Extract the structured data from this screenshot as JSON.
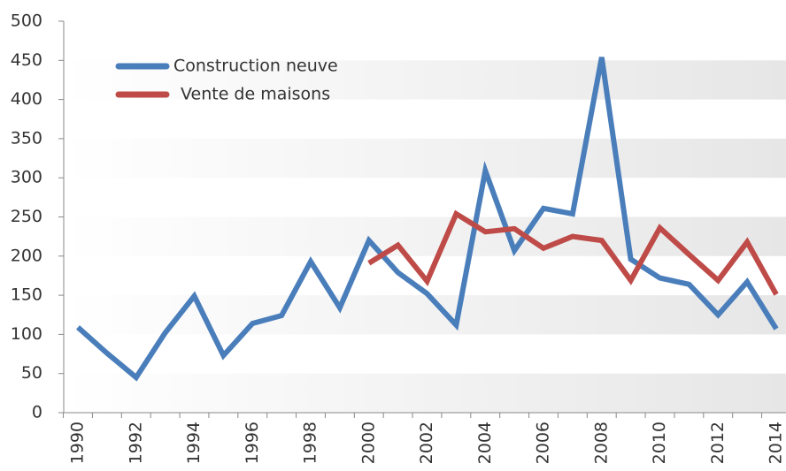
{
  "chart_data": {
    "type": "line",
    "categories": [
      "1990",
      null,
      "1992",
      null,
      "1994",
      null,
      "1996",
      null,
      "1998",
      null,
      "2000",
      null,
      "2002",
      null,
      "2004",
      null,
      "2006",
      null,
      "2008",
      null,
      "2010",
      null,
      "2012",
      null,
      "2014"
    ],
    "series": [
      {
        "name": "Construction neuve",
        "color": "#4a7ebb",
        "values": [
          109,
          76,
          45,
          102,
          149,
          73,
          114,
          124,
          193,
          134,
          220,
          179,
          152,
          112,
          309,
          207,
          261,
          254,
          454,
          196,
          172,
          164,
          125,
          167,
          107
        ]
      },
      {
        "name": "Vente de maisons",
        "color": "#be4b48",
        "values": [
          null,
          null,
          null,
          null,
          null,
          null,
          null,
          null,
          null,
          null,
          191,
          214,
          168,
          254,
          231,
          235,
          210,
          225,
          220,
          169,
          236,
          202,
          169,
          218,
          151
        ]
      }
    ],
    "ylim": [
      0,
      500
    ],
    "yticks": [
      0,
      50,
      100,
      150,
      200,
      250,
      300,
      350,
      400,
      450,
      500
    ],
    "legend": "top-left"
  }
}
